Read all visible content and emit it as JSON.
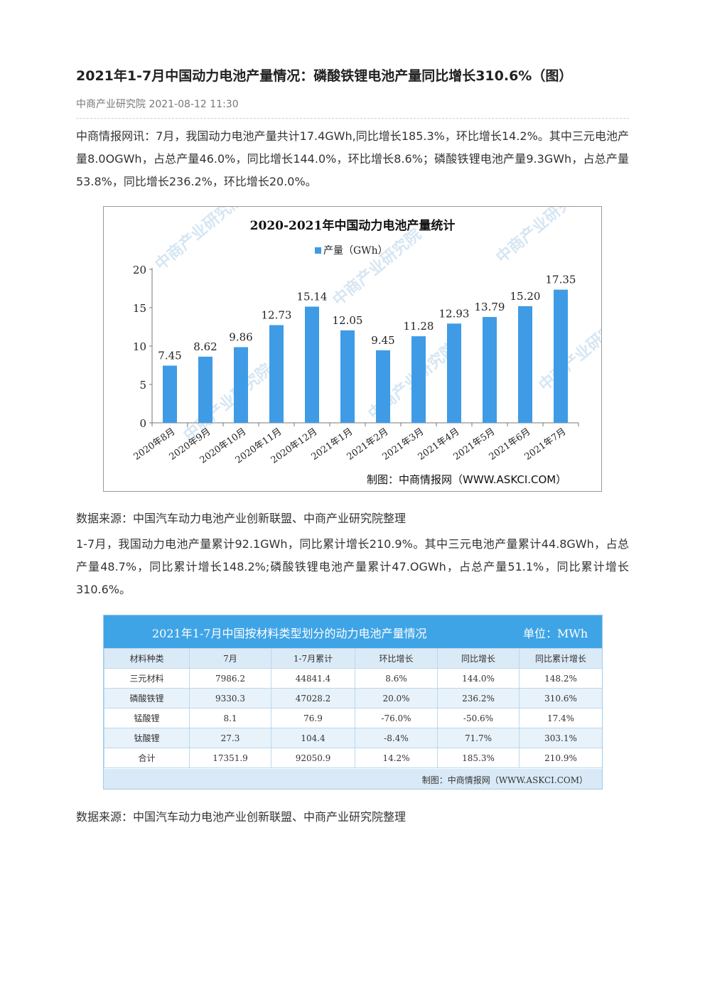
{
  "article": {
    "title": "2021年1-7月中国动力电池产量情况：磷酸铁锂电池产量同比增长310.6%（图）",
    "meta": "中商产业研究院 2021-08-12 11:30",
    "para1": "中商情报网讯：7月，我国动力电池产量共计17.4GWh,同比增长185.3%，环比增长14.2%。其中三元电池产量8.0OGWh，占总产量46.0%，同比增长144.0%，环比增长8.6%；磷酸铁锂电池产量9.3GWh，占总产量53.8%，同比增长236.2%，环比增长20.0%。",
    "source1": "数据来源：中国汽车动力电池产业创新联盟、中商产业研究院整理",
    "para2": "1-7月，我国动力电池产量累计92.1GWh，同比累计增长210.9%。其中三元电池产量累计44.8GWh，占总产量48.7%，同比累计增长148.2%;磷酸铁锂电池产量累计47.OGWh，占总产量51.1%，同比累计增长310.6%。",
    "source2": "数据来源：中国汽车动力电池产业创新联盟、中商产业研究院整理"
  },
  "chart_data": {
    "type": "bar",
    "title": "2020-2021年中国动力电池产量统计",
    "categories": [
      "2020年8月",
      "2020年9月",
      "2020年10月",
      "2020年11月",
      "2020年12月",
      "2021年1月",
      "2021年2月",
      "2021年3月",
      "2021年4月",
      "2021年5月",
      "2021年6月",
      "2021年7月"
    ],
    "series": [
      {
        "name": "产量（GWh）",
        "values": [
          7.45,
          8.62,
          9.86,
          12.73,
          15.14,
          12.05,
          9.45,
          11.28,
          12.93,
          13.79,
          15.2,
          17.35
        ]
      }
    ],
    "value_labels": [
      "7.45",
      "8.62",
      "9.86",
      "12.73",
      "15.14",
      "12.05",
      "9.45",
      "11.28",
      "12.93",
      "13.79",
      "15.20",
      "17.35"
    ],
    "ylim": [
      0,
      20
    ],
    "yticks": [
      "0",
      "5",
      "10",
      "15",
      "20"
    ],
    "legend_position": "top",
    "bar_color": "#3f9be5",
    "credit": "制图：中商情报网（WWW.ASKCI.COM）",
    "watermark": "中商产业研究院"
  },
  "table": {
    "title": "2021年1-7月中国按材料类型划分的动力电池产量情况",
    "unit": "单位：MWh",
    "headers": [
      "材料种类",
      "7月",
      "1-7月累计",
      "环比增长",
      "同比增长",
      "同比累计增长"
    ],
    "rows": [
      [
        "三元材料",
        "7986.2",
        "44841.4",
        "8.6%",
        "144.0%",
        "148.2%"
      ],
      [
        "磷酸铁锂",
        "9330.3",
        "47028.2",
        "20.0%",
        "236.2%",
        "310.6%"
      ],
      [
        "锰酸锂",
        "8.1",
        "76.9",
        "-76.0%",
        "-50.6%",
        "17.4%"
      ],
      [
        "钛酸锂",
        "27.3",
        "104.4",
        "-8.4%",
        "71.7%",
        "303.1%"
      ],
      [
        "合计",
        "17351.9",
        "92050.9",
        "14.2%",
        "185.3%",
        "210.9%"
      ]
    ],
    "note": "制图：中商情报网（WWW.ASKCI.COM）",
    "header_color": "#3fa4e6"
  }
}
